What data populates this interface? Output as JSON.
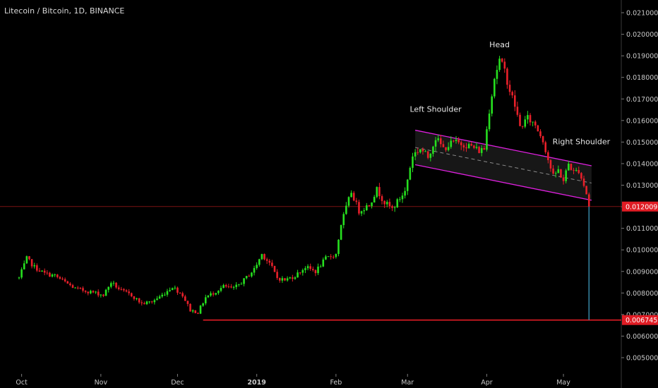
{
  "header": {
    "title": "Litecoin / Bitcoin, 1D, BINANCE"
  },
  "colors": {
    "background": "#000000",
    "up_candle": "#26e01f",
    "down_candle": "#e8202a",
    "channel": "#e020e0",
    "support_line": "#e01c24",
    "price_line": "#7a1212",
    "last_price_badge": "#e01c24",
    "drop_line": "#3a8fb0",
    "axis_text": "#c8c8c8"
  },
  "chart_data": {
    "type": "candlestick",
    "title": "Litecoin / Bitcoin, 1D, BINANCE",
    "ylim": [
      0.0044,
      0.0215
    ],
    "y_ticks": [
      "0.005000",
      "0.006000",
      "0.007000",
      "0.008000",
      "0.009000",
      "0.010000",
      "0.011000",
      "0.012000",
      "0.013000",
      "0.014000",
      "0.015000",
      "0.016000",
      "0.017000",
      "0.018000",
      "0.019000",
      "0.020000",
      "0.021000"
    ],
    "x_labels": [
      {
        "day": 1,
        "label": "Oct",
        "bold": false
      },
      {
        "day": 32,
        "label": "Nov",
        "bold": false
      },
      {
        "day": 62,
        "label": "Dec",
        "bold": false
      },
      {
        "day": 93,
        "label": "2019",
        "bold": true
      },
      {
        "day": 124,
        "label": "Feb",
        "bold": false
      },
      {
        "day": 152,
        "label": "Mar",
        "bold": false
      },
      {
        "day": 183,
        "label": "Apr",
        "bold": false
      },
      {
        "day": 213,
        "label": "May",
        "bold": false
      }
    ],
    "price_path": [
      [
        0,
        0.0087
      ],
      [
        3,
        0.0096
      ],
      [
        6,
        0.0092
      ],
      [
        10,
        0.0089
      ],
      [
        14,
        0.0088
      ],
      [
        18,
        0.0085
      ],
      [
        22,
        0.0082
      ],
      [
        26,
        0.0081
      ],
      [
        30,
        0.008
      ],
      [
        33,
        0.0079
      ],
      [
        36,
        0.0085
      ],
      [
        40,
        0.0081
      ],
      [
        44,
        0.0079
      ],
      [
        48,
        0.0075
      ],
      [
        52,
        0.0076
      ],
      [
        56,
        0.0079
      ],
      [
        60,
        0.0083
      ],
      [
        64,
        0.0079
      ],
      [
        67,
        0.0072
      ],
      [
        70,
        0.0071
      ],
      [
        73,
        0.0078
      ],
      [
        76,
        0.008
      ],
      [
        80,
        0.0083
      ],
      [
        84,
        0.0082
      ],
      [
        88,
        0.0086
      ],
      [
        92,
        0.0091
      ],
      [
        95,
        0.0098
      ],
      [
        98,
        0.0094
      ],
      [
        101,
        0.0087
      ],
      [
        104,
        0.0086
      ],
      [
        108,
        0.0088
      ],
      [
        112,
        0.0092
      ],
      [
        116,
        0.009
      ],
      [
        120,
        0.0096
      ],
      [
        124,
        0.0098
      ],
      [
        126,
        0.0112
      ],
      [
        130,
        0.0127
      ],
      [
        133,
        0.0118
      ],
      [
        137,
        0.0121
      ],
      [
        140,
        0.0128
      ],
      [
        143,
        0.0122
      ],
      [
        146,
        0.0119
      ],
      [
        149,
        0.0124
      ],
      [
        151,
        0.0127
      ],
      [
        154,
        0.0144
      ],
      [
        157,
        0.0147
      ],
      [
        160,
        0.0143
      ],
      [
        163,
        0.0152
      ],
      [
        166,
        0.0147
      ],
      [
        170,
        0.015
      ],
      [
        174,
        0.0149
      ],
      [
        177,
        0.0148
      ],
      [
        180,
        0.0146
      ],
      [
        182,
        0.0147
      ],
      [
        184,
        0.0165
      ],
      [
        186,
        0.018
      ],
      [
        188,
        0.0188
      ],
      [
        190,
        0.0183
      ],
      [
        192,
        0.0174
      ],
      [
        194,
        0.0167
      ],
      [
        196,
        0.0157
      ],
      [
        199,
        0.0161
      ],
      [
        202,
        0.0158
      ],
      [
        205,
        0.0151
      ],
      [
        207,
        0.0142
      ],
      [
        209,
        0.0134
      ],
      [
        211,
        0.0137
      ],
      [
        213,
        0.0132
      ],
      [
        215,
        0.014
      ],
      [
        217,
        0.0136
      ],
      [
        219,
        0.0137
      ],
      [
        221,
        0.013
      ],
      [
        222,
        0.0126
      ],
      [
        223,
        0.01201
      ]
    ],
    "channel": {
      "upper": [
        [
          155,
          0.01555
        ],
        [
          224,
          0.0139
        ]
      ],
      "lower": [
        [
          155,
          0.01395
        ],
        [
          224,
          0.0123
        ]
      ],
      "midline": [
        [
          155,
          0.01475
        ],
        [
          224,
          0.0131
        ]
      ]
    },
    "support_level": {
      "value": 0.006745,
      "start_day": 72
    },
    "current_price_line": 0.012009,
    "drop_line": {
      "day": 223,
      "from": 0.012009,
      "to": 0.006745
    },
    "price_labels": [
      {
        "value": 0.012009,
        "label": "0.012009"
      },
      {
        "value": 0.006745,
        "label": "0.006745"
      }
    ],
    "annotations": [
      {
        "text": "Left Shoulder",
        "day": 163,
        "price": 0.0164
      },
      {
        "text": "Head",
        "day": 188,
        "price": 0.0194
      },
      {
        "text": "Right Shoulder",
        "day": 220,
        "price": 0.0149
      }
    ]
  }
}
